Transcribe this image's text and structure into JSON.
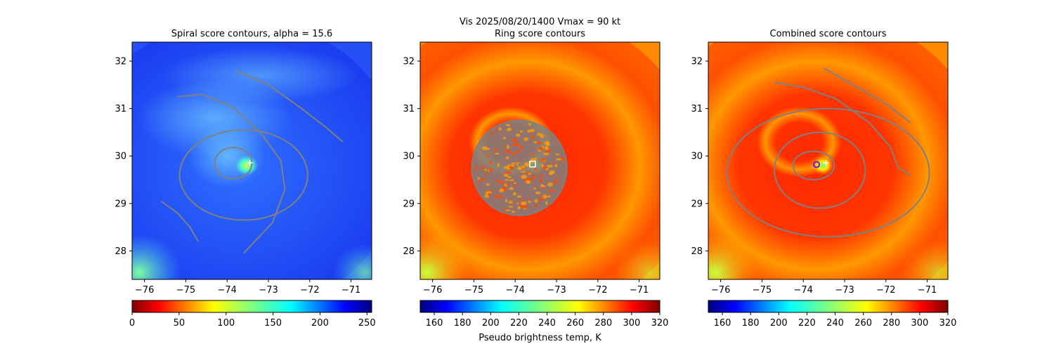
{
  "figure": {
    "suptitle_line1": "Vis  2025/08/20/1400    Vmax = 90 kt",
    "colorbar_label": "Pseudo brightness temp, K"
  },
  "chart_data": [
    {
      "type": "heatmap",
      "title": "Spiral score contours, alpha = 15.6",
      "xlim": [
        -76.3,
        -70.5
      ],
      "ylim": [
        27.4,
        32.4
      ],
      "xticks": [
        -76,
        -75,
        -74,
        -73,
        -72,
        -71
      ],
      "yticks": [
        28,
        29,
        30,
        31,
        32
      ],
      "xtick_labels": [
        "−76",
        "−75",
        "−74",
        "−73",
        "−72",
        "−71"
      ],
      "ytick_labels": [
        "28",
        "29",
        "30",
        "31",
        "32"
      ],
      "colormap": "jet",
      "colorbar": {
        "range": [
          0,
          255
        ],
        "ticks": [
          0,
          50,
          100,
          150,
          200,
          250
        ],
        "tick_labels": [
          "0",
          "50",
          "100",
          "150",
          "200",
          "250"
        ]
      },
      "contour_color": "#808080",
      "contours": [
        {
          "name": "inner",
          "center": [
            -73.85,
            29.85
          ],
          "rx": 0.45,
          "ry": 0.33
        },
        {
          "name": "middle",
          "center": [
            -73.6,
            29.6
          ],
          "rx": 1.55,
          "ry": 0.95
        },
        {
          "name": "outer-arc",
          "points": [
            [
              -75.2,
              31.25
            ],
            [
              -74.6,
              31.3
            ],
            [
              -73.9,
              31.05
            ],
            [
              -73.2,
              30.5
            ],
            [
              -72.7,
              29.9
            ],
            [
              -72.6,
              29.3
            ],
            [
              -72.9,
              28.6
            ],
            [
              -73.6,
              27.95
            ]
          ]
        },
        {
          "name": "ne-arc",
          "points": [
            [
              -73.8,
              31.8
            ],
            [
              -73.0,
              31.5
            ],
            [
              -72.2,
              31.0
            ],
            [
              -71.6,
              30.6
            ],
            [
              -71.2,
              30.3
            ]
          ]
        },
        {
          "name": "sw-arc",
          "points": [
            [
              -75.6,
              29.05
            ],
            [
              -75.2,
              28.8
            ],
            [
              -74.9,
              28.5
            ],
            [
              -74.7,
              28.2
            ]
          ]
        }
      ],
      "markers": [
        {
          "type": "plus",
          "lon": -73.45,
          "lat": 29.86,
          "color": "#ffffff"
        }
      ],
      "field_style": "spiral"
    },
    {
      "type": "heatmap",
      "title": "Ring score contours",
      "xlim": [
        -76.3,
        -70.5
      ],
      "ylim": [
        27.4,
        32.4
      ],
      "xticks": [
        -76,
        -75,
        -74,
        -73,
        -72,
        -71
      ],
      "yticks": [
        28,
        29,
        30,
        31,
        32
      ],
      "xtick_labels": [
        "−76",
        "−75",
        "−74",
        "−73",
        "−72",
        "−71"
      ],
      "ytick_labels": [
        "28",
        "29",
        "30",
        "31",
        "32"
      ],
      "colormap": "jet_r",
      "colorbar": {
        "range": [
          150,
          320
        ],
        "ticks": [
          160,
          180,
          200,
          220,
          240,
          260,
          280,
          300,
          320
        ],
        "tick_labels": [
          "160",
          "180",
          "200",
          "220",
          "240",
          "260",
          "280",
          "300",
          "320"
        ]
      },
      "contour_color": "#808080",
      "contours": [
        {
          "name": "ring-cluster",
          "center": [
            -73.9,
            29.75
          ],
          "rx": 1.15,
          "ry": 1.0
        }
      ],
      "markers": [
        {
          "type": "square",
          "lon": -73.58,
          "lat": 29.83,
          "color": "#ffffff"
        }
      ],
      "field_style": "bt"
    },
    {
      "type": "heatmap",
      "title": "Combined score contours",
      "xlim": [
        -76.3,
        -70.5
      ],
      "ylim": [
        27.4,
        32.4
      ],
      "xticks": [
        -76,
        -75,
        -74,
        -73,
        -72,
        -71
      ],
      "yticks": [
        28,
        29,
        30,
        31,
        32
      ],
      "xtick_labels": [
        "−76",
        "−75",
        "−74",
        "−73",
        "−72",
        "−71"
      ],
      "ytick_labels": [
        "28",
        "29",
        "30",
        "31",
        "32"
      ],
      "colormap": "jet_r",
      "colorbar": {
        "range": [
          150,
          320
        ],
        "ticks": [
          160,
          180,
          200,
          220,
          240,
          260,
          280,
          300,
          320
        ],
        "tick_labels": [
          "160",
          "180",
          "200",
          "220",
          "240",
          "260",
          "280",
          "300",
          "320"
        ]
      },
      "contour_color": "#808080",
      "contours": [
        {
          "name": "inner",
          "center": [
            -73.75,
            29.8
          ],
          "rx": 0.5,
          "ry": 0.3
        },
        {
          "name": "middle",
          "center": [
            -73.6,
            29.7
          ],
          "rx": 1.1,
          "ry": 0.8
        },
        {
          "name": "outer",
          "center": [
            -73.4,
            29.65
          ],
          "rx": 2.45,
          "ry": 1.35
        },
        {
          "name": "ne-arc",
          "points": [
            [
              -73.5,
              31.85
            ],
            [
              -73.0,
              31.6
            ],
            [
              -72.5,
              31.35
            ],
            [
              -72.0,
              31.1
            ],
            [
              -71.4,
              30.7
            ]
          ]
        },
        {
          "name": "north-arc",
          "points": [
            [
              -74.7,
              31.55
            ],
            [
              -74.0,
              31.45
            ],
            [
              -73.2,
              31.2
            ],
            [
              -72.4,
              30.7
            ],
            [
              -71.9,
              30.2
            ],
            [
              -71.7,
              29.75
            ],
            [
              -71.4,
              29.6
            ]
          ]
        }
      ],
      "markers": [
        {
          "type": "circle",
          "lon": -73.68,
          "lat": 29.82,
          "color": "#6a1bd8"
        },
        {
          "type": "plus",
          "lon": -73.45,
          "lat": 29.86,
          "color": "#ffffff"
        }
      ],
      "field_style": "bt"
    }
  ]
}
